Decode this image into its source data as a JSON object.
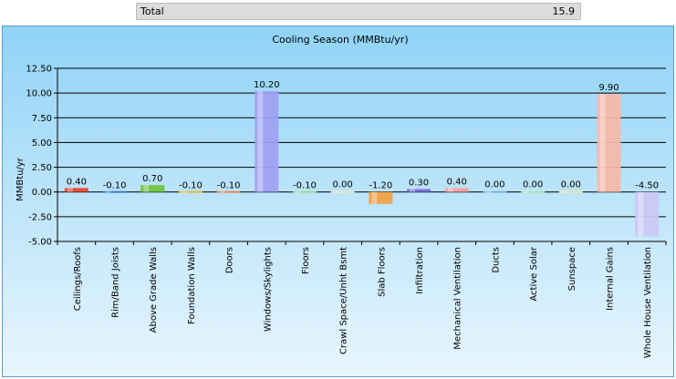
{
  "summary": {
    "label": "Total",
    "value": "15.9"
  },
  "chart_data": {
    "type": "bar",
    "title": "Cooling Season (MMBtu/yr)",
    "ylabel": "MMBtu/yr",
    "xlabel": "",
    "ylim": [
      -5.0,
      12.5
    ],
    "yticks": [
      "12.50",
      "10.00",
      "7.50",
      "5.00",
      "2.50",
      "0.00",
      "-2.50",
      "-5.00"
    ],
    "grid": true,
    "legend": "none",
    "categories": [
      "Ceilings/Roofs",
      "Rim/Band Joists",
      "Above Grade Walls",
      "Foundation Walls",
      "Doors",
      "Windows/Skylights",
      "Floors",
      "Crawl Space/Unht Bsmt",
      "Slab Floors",
      "Infiltration",
      "Mechanical Ventilation",
      "Ducts",
      "Active Solar",
      "Sunspace",
      "Internal Gains",
      "Whole House Ventilation"
    ],
    "values": [
      0.4,
      -0.1,
      0.7,
      -0.1,
      -0.1,
      10.2,
      -0.1,
      0.0,
      -1.2,
      0.3,
      0.4,
      0.0,
      0.0,
      0.0,
      9.9,
      -4.5
    ],
    "data_labels": [
      "0.40",
      "-0.10",
      "0.70",
      "-0.10",
      "-0.10",
      "10.20",
      "-0.10",
      "0.00",
      "-1.20",
      "0.30",
      "0.40",
      "0.00",
      "0.00",
      "0.00",
      "9.90",
      "-4.50"
    ],
    "colors": [
      "#e8412a",
      "#3a7fd0",
      "#6cc63d",
      "#f2c23a",
      "#f28a5a",
      "#9f9ff2",
      "#a6e0a0",
      "#f2eec0",
      "#f2a040",
      "#7c6ad8",
      "#f2a0a0",
      "#8ab8ee",
      "#b8ecb8",
      "#f2ecb0",
      "#f9b7a6",
      "#ccc8f6"
    ]
  }
}
